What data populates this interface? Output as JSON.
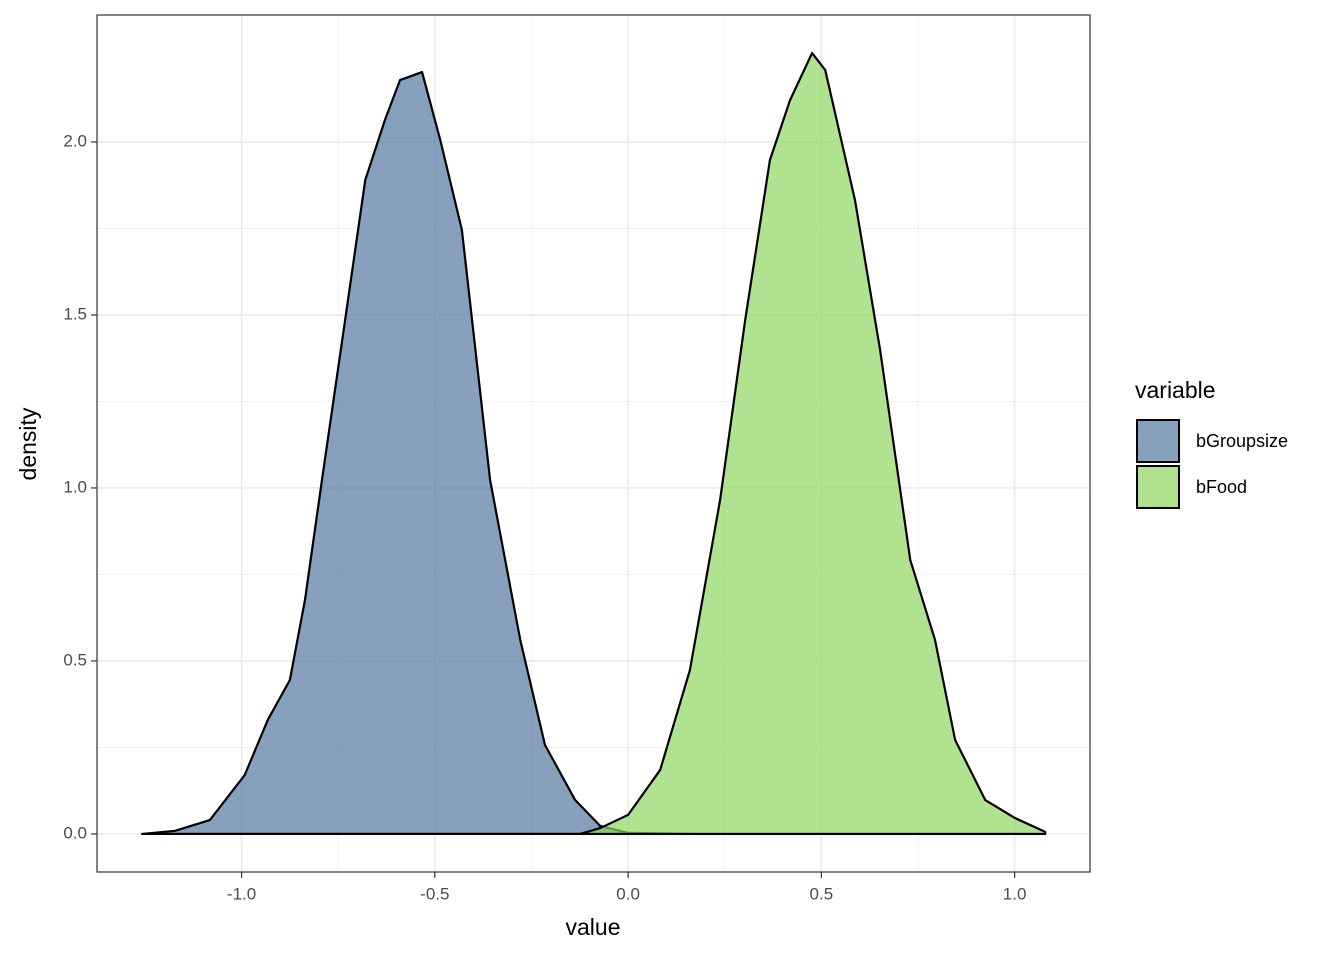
{
  "chart_data": {
    "type": "density",
    "x_label": "value",
    "y_label": "density",
    "legend_title": "variable",
    "legend_position": "right",
    "grid": true,
    "minor_grid": true,
    "fill_opacity": 0.7,
    "xlim": [
      -1.374,
      1.195
    ],
    "ylim": [
      -0.11,
      2.367
    ],
    "xticks": [
      {
        "value": -1,
        "label": "-1.0"
      },
      -0.5,
      {
        "value": 0,
        "label": "0.0"
      },
      0.5,
      {
        "value": 1,
        "label": "1.0"
      }
    ],
    "yticks": [
      {
        "value": 0,
        "label": "0.0"
      },
      0.5,
      {
        "value": 1,
        "label": "1.0"
      },
      1.5,
      {
        "value": 2,
        "label": "2.0"
      }
    ],
    "series": [
      {
        "name": "bGroupsize",
        "color": "#54779e",
        "x": [
          -1.257,
          -1.172,
          -1.082,
          -0.992,
          -0.932,
          -0.875,
          -0.836,
          -0.792,
          -0.732,
          -0.68,
          -0.629,
          -0.59,
          -0.533,
          -0.486,
          -0.43,
          -0.357,
          -0.279,
          -0.215,
          -0.137,
          -0.072,
          0,
          0.186,
          1.079
        ],
        "values": [
          0,
          0.009,
          0.04,
          0.17,
          0.33,
          0.445,
          0.676,
          1.023,
          1.486,
          1.89,
          2.064,
          2.179,
          2.202,
          2.006,
          1.746,
          1.023,
          0.561,
          0.257,
          0.098,
          0.023,
          0.003,
          0,
          0
        ]
      },
      {
        "name": "bFood",
        "color": "#8ed661",
        "x": [
          -1.257,
          -0.124,
          -0.072,
          0,
          0.083,
          0.16,
          0.238,
          0.303,
          0.367,
          0.419,
          0.476,
          0.51,
          0.587,
          0.652,
          0.73,
          0.794,
          0.846,
          0.924,
          1.001,
          1.079
        ],
        "values": [
          0,
          0,
          0.017,
          0.055,
          0.185,
          0.474,
          0.965,
          1.486,
          1.948,
          2.121,
          2.257,
          2.208,
          1.832,
          1.399,
          0.792,
          0.561,
          0.272,
          0.098,
          0.046,
          0.006
        ]
      }
    ]
  }
}
